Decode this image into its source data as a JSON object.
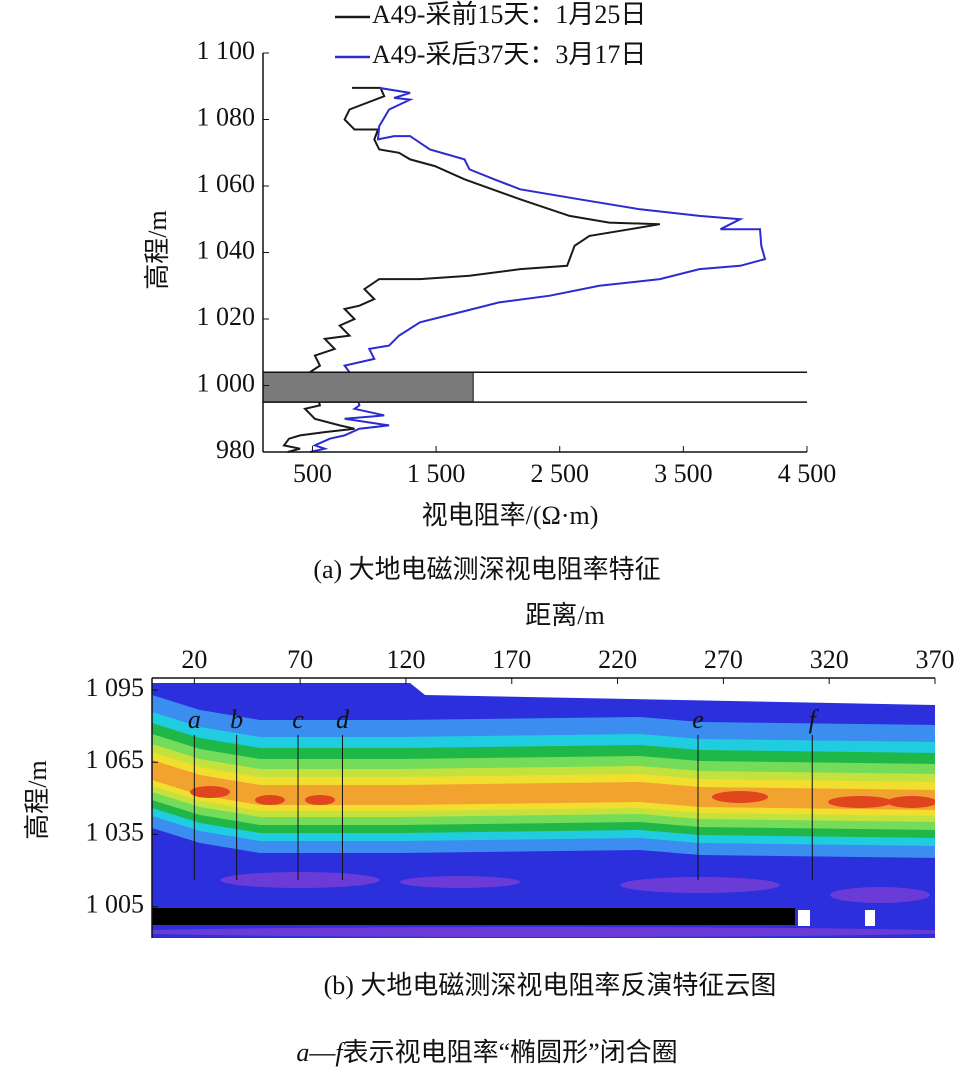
{
  "chart_data": [
    {
      "type": "line",
      "series": [
        {
          "name": "A49-采前15天：1月25日",
          "color": "#1a1a1a",
          "x": [
            820,
            1050,
            1080,
            800,
            760,
            840,
            1030,
            1000,
            1040,
            1200,
            1290,
            1490,
            1730,
            2180,
            2580,
            2900,
            3310,
            3070,
            2740,
            2620,
            2560,
            2180,
            1770,
            1370,
            1040,
            920,
            1000,
            880,
            760,
            840,
            720,
            800,
            600,
            680,
            520,
            560,
            480,
            560,
            440,
            520,
            720,
            840,
            600,
            400,
            310,
            270,
            400,
            300
          ],
          "y": [
            1089.5,
            1089.5,
            1087,
            1083,
            1080,
            1077,
            1077,
            1074,
            1071,
            1070,
            1068,
            1066,
            1062,
            1056,
            1051,
            1049,
            1048.5,
            1047,
            1045,
            1042,
            1036,
            1035,
            1033,
            1032,
            1032,
            1029,
            1026,
            1024,
            1023,
            1020,
            1018,
            1015,
            1014,
            1011,
            1009,
            1006,
            1004,
            994,
            993,
            990,
            988,
            987,
            986,
            985,
            984,
            982,
            981,
            980
          ]
        },
        {
          "name": "A49-采后37天：3月17日",
          "color": "#2b2bd0",
          "x": [
            1040,
            1290,
            1160,
            1290,
            1120,
            1040,
            1030,
            1160,
            1290,
            1450,
            1730,
            1770,
            1970,
            2180,
            2660,
            3150,
            3630,
            3960,
            3800,
            4120,
            4130,
            4160,
            3960,
            3630,
            3310,
            2820,
            2420,
            2010,
            1690,
            1370,
            1200,
            1120,
            960,
            1000,
            760,
            800,
            880,
            840,
            1080,
            760,
            1120,
            880,
            760,
            640,
            520,
            600,
            480
          ],
          "y": [
            1089.5,
            1088,
            1086.5,
            1086,
            1083,
            1078,
            1074,
            1075,
            1075,
            1071,
            1068,
            1065,
            1062,
            1059,
            1056,
            1053,
            1051,
            1050,
            1047,
            1047,
            1042,
            1038,
            1036,
            1035,
            1032,
            1030,
            1027,
            1025,
            1022,
            1019,
            1015,
            1012,
            1011,
            1008,
            1006,
            1004,
            994,
            993,
            991,
            990,
            988,
            987,
            985,
            984,
            982,
            981,
            980
          ]
        }
      ],
      "xlabel": "视电阻率/(Ω·m)",
      "ylabel": "高程/m",
      "caption": "(a) 大地电磁测深视电阻率特征",
      "xlim": [
        100,
        4500
      ],
      "xticks": [
        500,
        {
          "value": 1500,
          "label": "1 500"
        },
        {
          "value": 2500,
          "label": "2 500"
        },
        {
          "value": 3500,
          "label": "3 500"
        },
        {
          "value": 4500,
          "label": "4 500"
        }
      ],
      "ylim": [
        980,
        1100
      ],
      "yticks": [
        980,
        {
          "value": 1000,
          "label": "1 000"
        },
        {
          "value": 1020,
          "label": "1 020"
        },
        {
          "value": 1040,
          "label": "1 040"
        },
        {
          "value": 1060,
          "label": "1 060"
        },
        {
          "value": 1080,
          "label": "1 080"
        },
        {
          "value": 1100,
          "label": "1 100"
        }
      ],
      "band": {
        "xmax": 1800,
        "y": [
          995,
          1004
        ],
        "color": "#7a7a7a"
      }
    },
    {
      "type": "contour",
      "xlabel": "距离/m",
      "ylabel": "高程/m",
      "caption": "(b) 大地电磁测深视电阻率反演特征云图",
      "xlim": [
        0,
        370
      ],
      "xticks": [
        20,
        70,
        120,
        170,
        220,
        270,
        320,
        370
      ],
      "ylim": [
        992,
        1100
      ],
      "yticks": [
        {
          "value": 1005,
          "label": "1 005"
        },
        {
          "value": 1035,
          "label": "1 035"
        },
        {
          "value": 1065,
          "label": "1 065"
        },
        {
          "value": 1095,
          "label": "1 095"
        }
      ],
      "markers": [
        {
          "label": "a",
          "x": 20
        },
        {
          "label": "b",
          "x": 40
        },
        {
          "label": "c",
          "x": 69
        },
        {
          "label": "d",
          "x": 90
        },
        {
          "label": "e",
          "x": 258
        },
        {
          "label": "f",
          "x": 312
        }
      ]
    }
  ],
  "footnote": [
    "a",
    "—",
    "f",
    "表示视电阻率“椭圆形”闭合圈"
  ]
}
